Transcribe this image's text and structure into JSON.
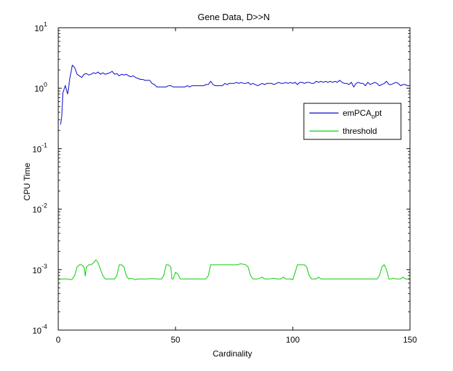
{
  "chart_data": {
    "type": "line",
    "title": "Gene Data, D>>N",
    "xlabel": "Cardinality",
    "ylabel": "CPU Time",
    "xlim": [
      0,
      150
    ],
    "ylim": [
      0.0001,
      10
    ],
    "yscale": "log",
    "grid": false,
    "legend_position": "top-right",
    "x_ticks": [
      {
        "value": 0,
        "label": "0"
      },
      {
        "value": 50,
        "label": "50"
      },
      {
        "value": 100,
        "label": "100"
      },
      {
        "value": 150,
        "label": "150"
      }
    ],
    "y_ticks": [
      {
        "value": 10,
        "base": "10",
        "exp": "1"
      },
      {
        "value": 1,
        "base": "10",
        "exp": "0"
      },
      {
        "value": 0.1,
        "base": "10",
        "exp": "-1"
      },
      {
        "value": 0.01,
        "base": "10",
        "exp": "-2"
      },
      {
        "value": 0.001,
        "base": "10",
        "exp": "-3"
      },
      {
        "value": 0.0001,
        "base": "10",
        "exp": "-4"
      }
    ],
    "series": [
      {
        "name_main": "emPCA",
        "name_sub": "o",
        "name_tail": "pt",
        "color": "#0000cc",
        "points": [
          [
            1,
            0.25
          ],
          [
            1.5,
            0.35
          ],
          [
            2,
            0.85
          ],
          [
            3,
            1.1
          ],
          [
            4,
            0.8
          ],
          [
            5,
            1.5
          ],
          [
            6,
            2.4
          ],
          [
            7,
            2.2
          ],
          [
            8,
            1.7
          ],
          [
            9,
            1.6
          ],
          [
            10,
            1.5
          ],
          [
            11,
            1.7
          ],
          [
            12,
            1.75
          ],
          [
            13,
            1.65
          ],
          [
            14,
            1.7
          ],
          [
            15,
            1.8
          ],
          [
            16,
            1.75
          ],
          [
            17,
            1.85
          ],
          [
            18,
            1.7
          ],
          [
            19,
            1.8
          ],
          [
            20,
            1.7
          ],
          [
            21,
            1.75
          ],
          [
            22,
            1.8
          ],
          [
            23,
            1.9
          ],
          [
            24,
            1.7
          ],
          [
            25,
            1.75
          ],
          [
            26,
            1.6
          ],
          [
            27,
            1.7
          ],
          [
            28,
            1.65
          ],
          [
            29,
            1.7
          ],
          [
            30,
            1.6
          ],
          [
            31,
            1.55
          ],
          [
            32,
            1.6
          ],
          [
            33,
            1.5
          ],
          [
            34,
            1.45
          ],
          [
            35,
            1.4
          ],
          [
            36,
            1.4
          ],
          [
            37,
            1.35
          ],
          [
            38,
            1.35
          ],
          [
            39,
            1.35
          ],
          [
            40,
            1.2
          ],
          [
            41,
            1.15
          ],
          [
            42,
            1.05
          ],
          [
            43,
            1.05
          ],
          [
            44,
            1.05
          ],
          [
            45,
            1.05
          ],
          [
            46,
            1.05
          ],
          [
            47,
            1.1
          ],
          [
            48,
            1.1
          ],
          [
            49,
            1.05
          ],
          [
            50,
            1.05
          ],
          [
            51,
            1.05
          ],
          [
            52,
            1.05
          ],
          [
            53,
            1.05
          ],
          [
            54,
            1.05
          ],
          [
            55,
            1.1
          ],
          [
            56,
            1.05
          ],
          [
            57,
            1.1
          ],
          [
            58,
            1.1
          ],
          [
            59,
            1.1
          ],
          [
            60,
            1.1
          ],
          [
            61,
            1.1
          ],
          [
            62,
            1.1
          ],
          [
            63,
            1.15
          ],
          [
            64,
            1.15
          ],
          [
            65,
            1.3
          ],
          [
            66,
            1.15
          ],
          [
            67,
            1.1
          ],
          [
            68,
            1.1
          ],
          [
            69,
            1.1
          ],
          [
            70,
            1.1
          ],
          [
            71,
            1.2
          ],
          [
            72,
            1.15
          ],
          [
            73,
            1.2
          ],
          [
            74,
            1.2
          ],
          [
            75,
            1.2
          ],
          [
            76,
            1.25
          ],
          [
            77,
            1.2
          ],
          [
            78,
            1.25
          ],
          [
            79,
            1.2
          ],
          [
            80,
            1.2
          ],
          [
            81,
            1.25
          ],
          [
            82,
            1.15
          ],
          [
            83,
            1.2
          ],
          [
            84,
            1.15
          ],
          [
            85,
            1.1
          ],
          [
            86,
            1.15
          ],
          [
            87,
            1.2
          ],
          [
            88,
            1.15
          ],
          [
            89,
            1.2
          ],
          [
            90,
            1.2
          ],
          [
            91,
            1.2
          ],
          [
            92,
            1.15
          ],
          [
            93,
            1.2
          ],
          [
            94,
            1.25
          ],
          [
            95,
            1.2
          ],
          [
            96,
            1.2
          ],
          [
            97,
            1.25
          ],
          [
            98,
            1.2
          ],
          [
            99,
            1.25
          ],
          [
            100,
            1.2
          ],
          [
            101,
            1.25
          ],
          [
            102,
            1.15
          ],
          [
            103,
            1.25
          ],
          [
            104,
            1.25
          ],
          [
            105,
            1.2
          ],
          [
            106,
            1.25
          ],
          [
            107,
            1.25
          ],
          [
            108,
            1.2
          ],
          [
            109,
            1.2
          ],
          [
            110,
            1.3
          ],
          [
            111,
            1.25
          ],
          [
            112,
            1.3
          ],
          [
            113,
            1.25
          ],
          [
            114,
            1.3
          ],
          [
            115,
            1.25
          ],
          [
            116,
            1.3
          ],
          [
            117,
            1.25
          ],
          [
            118,
            1.3
          ],
          [
            119,
            1.25
          ],
          [
            120,
            1.35
          ],
          [
            121,
            1.25
          ],
          [
            122,
            1.2
          ],
          [
            123,
            1.2
          ],
          [
            124,
            1.15
          ],
          [
            125,
            1.25
          ],
          [
            126,
            1.05
          ],
          [
            127,
            1.2
          ],
          [
            128,
            1.25
          ],
          [
            129,
            1.2
          ],
          [
            130,
            1.2
          ],
          [
            131,
            1.1
          ],
          [
            132,
            1.25
          ],
          [
            133,
            1.15
          ],
          [
            134,
            1.2
          ],
          [
            135,
            1.25
          ],
          [
            136,
            1.2
          ],
          [
            137,
            1.1
          ],
          [
            138,
            1.15
          ],
          [
            139,
            1.2
          ],
          [
            140,
            1.3
          ],
          [
            141,
            1.15
          ],
          [
            142,
            1.15
          ],
          [
            143,
            1.2
          ],
          [
            144,
            1.25
          ],
          [
            145,
            1.2
          ],
          [
            146,
            1.1
          ],
          [
            147,
            1.15
          ],
          [
            148,
            1.15
          ],
          [
            149,
            1.1
          ],
          [
            150,
            1.1
          ]
        ]
      },
      {
        "name_main": "threshold",
        "name_sub": "",
        "name_tail": "",
        "color": "#00cc00",
        "points": [
          [
            0,
            0.0007
          ],
          [
            4,
            0.0007
          ],
          [
            5,
            0.00068
          ],
          [
            6,
            0.0007
          ],
          [
            7,
            0.0008
          ],
          [
            8,
            0.0011
          ],
          [
            9,
            0.0012
          ],
          [
            10,
            0.0012
          ],
          [
            11,
            0.0011
          ],
          [
            11.5,
            0.00078
          ],
          [
            12,
            0.0011
          ],
          [
            13,
            0.0012
          ],
          [
            14,
            0.0012
          ],
          [
            15,
            0.0013
          ],
          [
            16,
            0.00145
          ],
          [
            17,
            0.0013
          ],
          [
            18,
            0.001
          ],
          [
            19,
            0.0008
          ],
          [
            20,
            0.0007
          ],
          [
            21,
            0.0007
          ],
          [
            22,
            0.0007
          ],
          [
            23,
            0.0007
          ],
          [
            24,
            0.0007
          ],
          [
            25,
            0.0008
          ],
          [
            26,
            0.0012
          ],
          [
            27,
            0.0012
          ],
          [
            28,
            0.0011
          ],
          [
            29,
            0.0008
          ],
          [
            30,
            0.0007
          ],
          [
            31,
            0.00072
          ],
          [
            32,
            0.0007
          ],
          [
            33,
            0.00068
          ],
          [
            34,
            0.0007
          ],
          [
            36,
            0.0007
          ],
          [
            38,
            0.0007
          ],
          [
            40,
            0.00071
          ],
          [
            42,
            0.0007
          ],
          [
            44,
            0.0007
          ],
          [
            45,
            0.0008
          ],
          [
            46,
            0.0012
          ],
          [
            47,
            0.0012
          ],
          [
            48,
            0.0011
          ],
          [
            48.5,
            0.0007
          ],
          [
            49,
            0.0007
          ],
          [
            50,
            0.0009
          ],
          [
            51,
            0.00085
          ],
          [
            52,
            0.0007
          ],
          [
            54,
            0.0007
          ],
          [
            56,
            0.0007
          ],
          [
            58,
            0.0007
          ],
          [
            60,
            0.0007
          ],
          [
            62,
            0.0007
          ],
          [
            63,
            0.0007
          ],
          [
            64,
            0.0008
          ],
          [
            65,
            0.0012
          ],
          [
            67,
            0.0012
          ],
          [
            70,
            0.0012
          ],
          [
            73,
            0.0012
          ],
          [
            76,
            0.0012
          ],
          [
            78,
            0.00125
          ],
          [
            80,
            0.0012
          ],
          [
            81,
            0.0011
          ],
          [
            82,
            0.0008
          ],
          [
            83,
            0.0007
          ],
          [
            85,
            0.0007
          ],
          [
            87,
            0.00075
          ],
          [
            88,
            0.0007
          ],
          [
            90,
            0.0007
          ],
          [
            92,
            0.00072
          ],
          [
            93,
            0.0007
          ],
          [
            95,
            0.0007
          ],
          [
            96,
            0.00075
          ],
          [
            97,
            0.0007
          ],
          [
            99,
            0.0007
          ],
          [
            100,
            0.00068
          ],
          [
            101,
            0.0009
          ],
          [
            102,
            0.0012
          ],
          [
            103,
            0.0012
          ],
          [
            105,
            0.0012
          ],
          [
            106,
            0.0011
          ],
          [
            107,
            0.0008
          ],
          [
            108,
            0.0007
          ],
          [
            110,
            0.0007
          ],
          [
            111,
            0.00075
          ],
          [
            112,
            0.0007
          ],
          [
            114,
            0.0007
          ],
          [
            116,
            0.0007
          ],
          [
            118,
            0.0007
          ],
          [
            120,
            0.0007
          ],
          [
            122,
            0.0007
          ],
          [
            124,
            0.0007
          ],
          [
            126,
            0.0007
          ],
          [
            128,
            0.0007
          ],
          [
            130,
            0.0007
          ],
          [
            132,
            0.0007
          ],
          [
            134,
            0.0007
          ],
          [
            136,
            0.0007
          ],
          [
            137,
            0.0008
          ],
          [
            138,
            0.0011
          ],
          [
            139,
            0.0012
          ],
          [
            140,
            0.001
          ],
          [
            141,
            0.0007
          ],
          [
            142,
            0.0007
          ],
          [
            143,
            0.00072
          ],
          [
            144,
            0.0007
          ],
          [
            146,
            0.0007
          ],
          [
            147,
            0.00075
          ],
          [
            148,
            0.0007
          ],
          [
            150,
            0.0007
          ]
        ]
      }
    ]
  }
}
